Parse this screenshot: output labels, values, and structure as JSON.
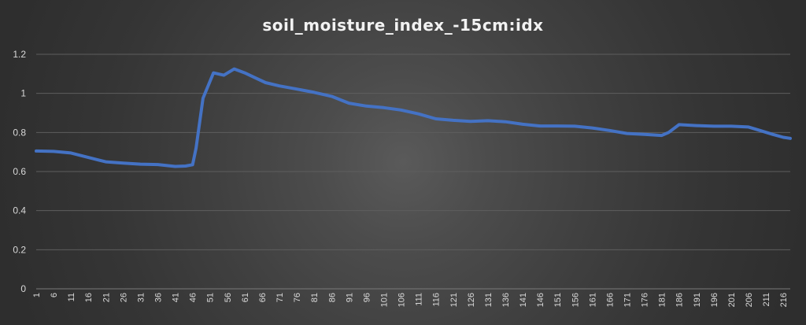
{
  "chart_data": {
    "type": "line",
    "title": "soil_moisture_index_-15cm:idx",
    "xlabel": "",
    "ylabel": "",
    "ylim": [
      0,
      1.2
    ],
    "yticks": [
      0,
      0.2,
      0.4,
      0.6,
      0.8,
      1,
      1.2
    ],
    "grid": true,
    "legend": "none",
    "x_range": [
      1,
      218
    ],
    "x_tick_labels": [
      1,
      6,
      11,
      16,
      21,
      26,
      31,
      36,
      41,
      46,
      51,
      56,
      61,
      66,
      71,
      76,
      81,
      86,
      91,
      96,
      101,
      106,
      111,
      116,
      121,
      126,
      131,
      136,
      141,
      146,
      151,
      156,
      161,
      166,
      171,
      176,
      181,
      186,
      191,
      196,
      201,
      206,
      211,
      216
    ],
    "series": [
      {
        "color": "#4472c4",
        "points": [
          [
            1,
            0.705
          ],
          [
            6,
            0.703
          ],
          [
            11,
            0.695
          ],
          [
            16,
            0.672
          ],
          [
            21,
            0.65
          ],
          [
            26,
            0.643
          ],
          [
            31,
            0.638
          ],
          [
            36,
            0.636
          ],
          [
            41,
            0.626
          ],
          [
            44,
            0.628
          ],
          [
            46,
            0.635
          ],
          [
            47,
            0.72
          ],
          [
            49,
            0.975
          ],
          [
            52,
            1.105
          ],
          [
            55,
            1.093
          ],
          [
            58,
            1.125
          ],
          [
            61,
            1.105
          ],
          [
            64,
            1.08
          ],
          [
            67,
            1.055
          ],
          [
            71,
            1.038
          ],
          [
            76,
            1.022
          ],
          [
            81,
            1.005
          ],
          [
            86,
            0.985
          ],
          [
            91,
            0.95
          ],
          [
            96,
            0.935
          ],
          [
            101,
            0.927
          ],
          [
            106,
            0.915
          ],
          [
            111,
            0.895
          ],
          [
            116,
            0.87
          ],
          [
            121,
            0.862
          ],
          [
            126,
            0.857
          ],
          [
            131,
            0.86
          ],
          [
            136,
            0.855
          ],
          [
            141,
            0.842
          ],
          [
            146,
            0.833
          ],
          [
            151,
            0.833
          ],
          [
            156,
            0.832
          ],
          [
            161,
            0.823
          ],
          [
            166,
            0.81
          ],
          [
            171,
            0.795
          ],
          [
            176,
            0.79
          ],
          [
            181,
            0.785
          ],
          [
            183,
            0.8
          ],
          [
            186,
            0.84
          ],
          [
            191,
            0.835
          ],
          [
            196,
            0.832
          ],
          [
            201,
            0.832
          ],
          [
            206,
            0.828
          ],
          [
            209,
            0.812
          ],
          [
            213,
            0.79
          ],
          [
            216,
            0.775
          ],
          [
            218,
            0.77
          ]
        ]
      }
    ]
  }
}
